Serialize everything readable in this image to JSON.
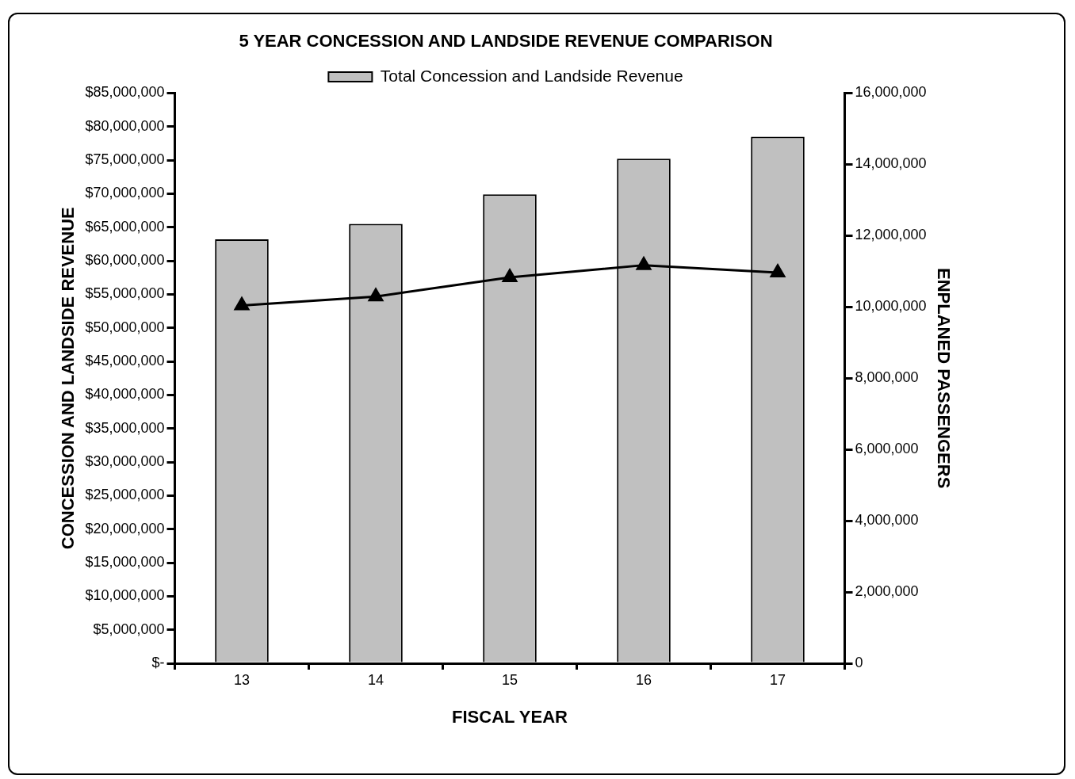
{
  "chart_data": {
    "type": "bar",
    "title": "5 YEAR CONCESSION AND LANDSIDE REVENUE COMPARISON",
    "xlabel": "FISCAL YEAR",
    "ylabel": "CONCESSION AND LANDSIDE REVENUE",
    "y2label": "ENPLANED PASSENGERS",
    "categories": [
      "13",
      "14",
      "15",
      "16",
      "17"
    ],
    "series": [
      {
        "name": "Total Concession and Landside Revenue",
        "color": "#c0c0c0",
        "values": [
          63200000,
          65500000,
          69900000,
          75200000,
          78500000
        ]
      },
      {
        "type": "line",
        "axis": "y2",
        "color": "#000000",
        "marker": "triangle",
        "values": [
          10040000,
          10290000,
          10830000,
          11170000,
          10960000
        ]
      }
    ],
    "ylim": [
      0,
      85000000
    ],
    "yticks": [
      {
        "value": 0,
        "label": "$-"
      },
      {
        "value": 5000000,
        "label": "$5,000,000"
      },
      {
        "value": 10000000,
        "label": "$10,000,000"
      },
      {
        "value": 15000000,
        "label": "$15,000,000"
      },
      {
        "value": 20000000,
        "label": "$20,000,000"
      },
      {
        "value": 25000000,
        "label": "$25,000,000"
      },
      {
        "value": 30000000,
        "label": "$30,000,000"
      },
      {
        "value": 35000000,
        "label": "$35,000,000"
      },
      {
        "value": 40000000,
        "label": "$40,000,000"
      },
      {
        "value": 45000000,
        "label": "$45,000,000"
      },
      {
        "value": 50000000,
        "label": "$50,000,000"
      },
      {
        "value": 55000000,
        "label": "$55,000,000"
      },
      {
        "value": 60000000,
        "label": "$60,000,000"
      },
      {
        "value": 65000000,
        "label": "$65,000,000"
      },
      {
        "value": 70000000,
        "label": "$70,000,000"
      },
      {
        "value": 75000000,
        "label": "$75,000,000"
      },
      {
        "value": 80000000,
        "label": "$80,000,000"
      },
      {
        "value": 85000000,
        "label": "$85,000,000"
      }
    ],
    "y2lim": [
      0,
      16000000
    ],
    "y2ticks": [
      0,
      {
        "value": 2000000,
        "label": "2,000,000"
      },
      {
        "value": 4000000,
        "label": "4,000,000"
      },
      {
        "value": 6000000,
        "label": "6,000,000"
      },
      {
        "value": 8000000,
        "label": "8,000,000"
      },
      {
        "value": 10000000,
        "label": "10,000,000"
      },
      {
        "value": 12000000,
        "label": "12,000,000"
      },
      {
        "value": 14000000,
        "label": "14,000,000"
      },
      {
        "value": 16000000,
        "label": "16,000,000"
      }
    ],
    "legend": "top",
    "grid": false
  }
}
